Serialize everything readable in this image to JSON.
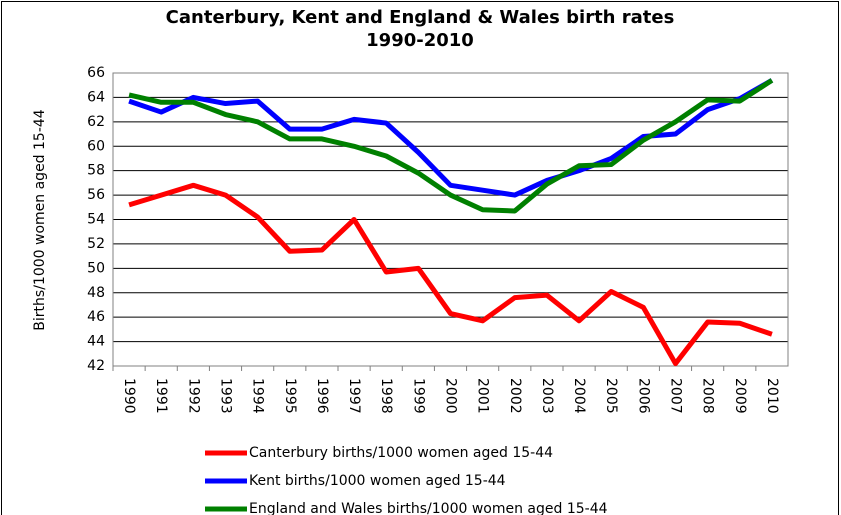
{
  "chart_data": {
    "type": "line",
    "title": "Canterbury, Kent and England & Wales birth rates 1990-2010",
    "y_label": "Births/1000 women aged 15-44",
    "categories": [
      "1990",
      "1991",
      "1992",
      "1993",
      "1994",
      "1995",
      "1996",
      "1997",
      "1998",
      "1999",
      "2000",
      "2001",
      "2002",
      "2003",
      "2004",
      "2005",
      "2006",
      "2007",
      "2008",
      "2009",
      "2010"
    ],
    "series": [
      {
        "name": "Canterbury births/1000 women aged 15-44",
        "color": "#ff0000",
        "values": [
          55.2,
          56.0,
          56.8,
          56.0,
          54.2,
          51.4,
          51.5,
          54.0,
          49.7,
          50.0,
          46.3,
          45.7,
          47.6,
          47.8,
          45.7,
          48.1,
          46.8,
          42.2,
          45.6,
          45.5,
          44.6
        ]
      },
      {
        "name": "Kent births/1000 women aged 15-44",
        "color": "#0000ff",
        "values": [
          63.7,
          62.8,
          64.0,
          63.5,
          63.7,
          61.4,
          61.4,
          62.2,
          61.9,
          59.5,
          56.8,
          56.4,
          56.0,
          57.2,
          58.0,
          59.0,
          60.8,
          61.0,
          63.0,
          63.9,
          65.4
        ]
      },
      {
        "name": "England and Wales births/1000 women aged 15-44",
        "color": "#008000",
        "values": [
          64.2,
          63.6,
          63.6,
          62.6,
          62.0,
          60.6,
          60.6,
          60.0,
          59.2,
          57.8,
          56.0,
          54.8,
          54.7,
          56.9,
          58.4,
          58.5,
          60.5,
          62.0,
          63.8,
          63.7,
          65.4
        ]
      }
    ],
    "ylim": [
      42,
      66
    ],
    "yticks": [
      42,
      44,
      46,
      48,
      50,
      52,
      54,
      56,
      58,
      60,
      62,
      64,
      66
    ],
    "grid": true,
    "legend": "bottom"
  }
}
